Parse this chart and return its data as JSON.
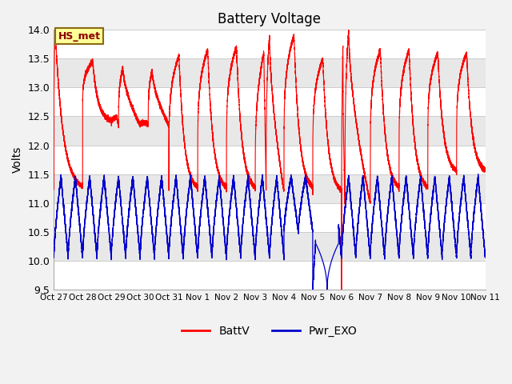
{
  "title": "Battery Voltage",
  "ylabel": "Volts",
  "ylim": [
    9.5,
    14.0
  ],
  "yticks": [
    9.5,
    10.0,
    10.5,
    11.0,
    11.5,
    12.0,
    12.5,
    13.0,
    13.5,
    14.0
  ],
  "xlabels": [
    "Oct 27",
    "Oct 28",
    "Oct 29",
    "Oct 30",
    "Oct 31",
    "Nov 1",
    "Nov 2",
    "Nov 3",
    "Nov 4",
    "Nov 5",
    "Nov 6",
    "Nov 7",
    "Nov 8",
    "Nov 9",
    "Nov 10",
    "Nov 11"
  ],
  "fig_bg_color": "#f2f2f2",
  "plot_bg_color": "#ffffff",
  "band_color_light": "#ffffff",
  "band_color_dark": "#e8e8e8",
  "line_red": "#ff0000",
  "line_blue": "#0000cc",
  "annotation_text": "HS_met",
  "annotation_bg": "#ffff99",
  "annotation_border": "#8b6914",
  "legend_entries": [
    "BattV",
    "Pwr_EXO"
  ],
  "n_days": 15
}
